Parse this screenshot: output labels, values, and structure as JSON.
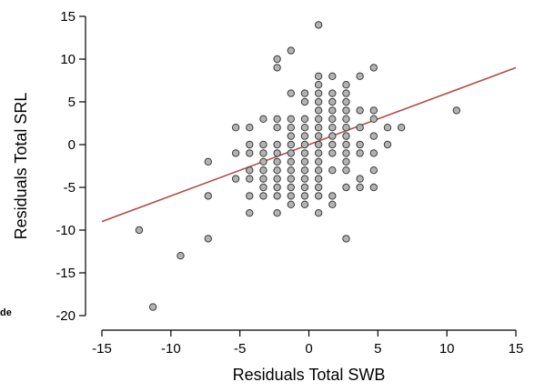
{
  "edge_fragment": "de",
  "chart_data": {
    "type": "scatter",
    "xlabel": "Residuals Total SWB",
    "ylabel": "Residuals Total SRL",
    "xlim": [
      -15,
      15
    ],
    "ylim": [
      -20,
      15
    ],
    "xticks": [
      -15,
      -10,
      -5,
      0,
      5,
      10,
      15
    ],
    "yticks": [
      -20,
      -15,
      -10,
      -5,
      0,
      5,
      10,
      15
    ],
    "grid": false,
    "point_color": "#b3b3b3",
    "point_edge_color": "#3a3a3a",
    "fit_line": {
      "color": "#b44a4a",
      "x": [
        -15,
        15
      ],
      "y": [
        -9,
        9
      ]
    },
    "points": [
      {
        "x": -12.3,
        "y": -10
      },
      {
        "x": -11.3,
        "y": -19
      },
      {
        "x": -9.3,
        "y": -13
      },
      {
        "x": -7.3,
        "y": -2
      },
      {
        "x": -7.3,
        "y": -6
      },
      {
        "x": -7.3,
        "y": -11
      },
      {
        "x": -5.3,
        "y": 2
      },
      {
        "x": -5.3,
        "y": -1
      },
      {
        "x": -5.3,
        "y": -4
      },
      {
        "x": -4.3,
        "y": 2
      },
      {
        "x": -4.3,
        "y": 0
      },
      {
        "x": -4.3,
        "y": -1
      },
      {
        "x": -4.3,
        "y": -3
      },
      {
        "x": -4.3,
        "y": -4
      },
      {
        "x": -4.3,
        "y": -6
      },
      {
        "x": -4.3,
        "y": -8
      },
      {
        "x": -3.3,
        "y": 3
      },
      {
        "x": -3.3,
        "y": 0
      },
      {
        "x": -3.3,
        "y": -1
      },
      {
        "x": -3.3,
        "y": -2
      },
      {
        "x": -3.3,
        "y": -3
      },
      {
        "x": -3.3,
        "y": -4
      },
      {
        "x": -3.3,
        "y": -5
      },
      {
        "x": -3.3,
        "y": -6
      },
      {
        "x": -2.3,
        "y": 10
      },
      {
        "x": -2.3,
        "y": 9
      },
      {
        "x": -2.3,
        "y": 3
      },
      {
        "x": -2.3,
        "y": 2
      },
      {
        "x": -2.3,
        "y": 0
      },
      {
        "x": -2.3,
        "y": -1
      },
      {
        "x": -2.3,
        "y": -2
      },
      {
        "x": -2.3,
        "y": -3
      },
      {
        "x": -2.3,
        "y": -4
      },
      {
        "x": -2.3,
        "y": -5
      },
      {
        "x": -2.3,
        "y": -6
      },
      {
        "x": -2.3,
        "y": -8
      },
      {
        "x": -1.3,
        "y": 11
      },
      {
        "x": -1.3,
        "y": 6
      },
      {
        "x": -1.3,
        "y": 3
      },
      {
        "x": -1.3,
        "y": 2
      },
      {
        "x": -1.3,
        "y": 1
      },
      {
        "x": -1.3,
        "y": 0
      },
      {
        "x": -1.3,
        "y": -1
      },
      {
        "x": -1.3,
        "y": -2
      },
      {
        "x": -1.3,
        "y": -3
      },
      {
        "x": -1.3,
        "y": -4
      },
      {
        "x": -1.3,
        "y": -5
      },
      {
        "x": -1.3,
        "y": -6
      },
      {
        "x": -1.3,
        "y": -7
      },
      {
        "x": -0.3,
        "y": 6
      },
      {
        "x": -0.3,
        "y": 5
      },
      {
        "x": -0.3,
        "y": 3
      },
      {
        "x": -0.3,
        "y": 2
      },
      {
        "x": -0.3,
        "y": 1
      },
      {
        "x": -0.3,
        "y": 0
      },
      {
        "x": -0.3,
        "y": -1
      },
      {
        "x": -0.3,
        "y": -2
      },
      {
        "x": -0.3,
        "y": -3
      },
      {
        "x": -0.3,
        "y": -4
      },
      {
        "x": -0.3,
        "y": -5
      },
      {
        "x": -0.3,
        "y": -6
      },
      {
        "x": -0.3,
        "y": -7
      },
      {
        "x": 0.7,
        "y": 14
      },
      {
        "x": 0.7,
        "y": 8
      },
      {
        "x": 0.7,
        "y": 7
      },
      {
        "x": 0.7,
        "y": 6
      },
      {
        "x": 0.7,
        "y": 5
      },
      {
        "x": 0.7,
        "y": 4
      },
      {
        "x": 0.7,
        "y": 3
      },
      {
        "x": 0.7,
        "y": 2
      },
      {
        "x": 0.7,
        "y": 1
      },
      {
        "x": 0.7,
        "y": 0
      },
      {
        "x": 0.7,
        "y": -1
      },
      {
        "x": 0.7,
        "y": -2
      },
      {
        "x": 0.7,
        "y": -3
      },
      {
        "x": 0.7,
        "y": -4
      },
      {
        "x": 0.7,
        "y": -5
      },
      {
        "x": 0.7,
        "y": -6
      },
      {
        "x": 0.7,
        "y": -8
      },
      {
        "x": 1.7,
        "y": 8
      },
      {
        "x": 1.7,
        "y": 6
      },
      {
        "x": 1.7,
        "y": 5
      },
      {
        "x": 1.7,
        "y": 4
      },
      {
        "x": 1.7,
        "y": 3
      },
      {
        "x": 1.7,
        "y": 2
      },
      {
        "x": 1.7,
        "y": 1
      },
      {
        "x": 1.7,
        "y": 0
      },
      {
        "x": 1.7,
        "y": -1
      },
      {
        "x": 1.7,
        "y": -3
      },
      {
        "x": 1.7,
        "y": -6
      },
      {
        "x": 1.7,
        "y": -7
      },
      {
        "x": 2.7,
        "y": 7
      },
      {
        "x": 2.7,
        "y": 6
      },
      {
        "x": 2.7,
        "y": 5
      },
      {
        "x": 2.7,
        "y": 4
      },
      {
        "x": 2.7,
        "y": 3
      },
      {
        "x": 2.7,
        "y": 2
      },
      {
        "x": 2.7,
        "y": 1
      },
      {
        "x": 2.7,
        "y": 0
      },
      {
        "x": 2.7,
        "y": -1
      },
      {
        "x": 2.7,
        "y": -2
      },
      {
        "x": 2.7,
        "y": -3
      },
      {
        "x": 2.7,
        "y": -5
      },
      {
        "x": 2.7,
        "y": -11
      },
      {
        "x": 3.7,
        "y": 8
      },
      {
        "x": 3.7,
        "y": 4
      },
      {
        "x": 3.7,
        "y": 2
      },
      {
        "x": 3.7,
        "y": 0
      },
      {
        "x": 3.7,
        "y": -1
      },
      {
        "x": 3.7,
        "y": -4
      },
      {
        "x": 3.7,
        "y": -5
      },
      {
        "x": 4.7,
        "y": 9
      },
      {
        "x": 4.7,
        "y": 4
      },
      {
        "x": 4.7,
        "y": 3
      },
      {
        "x": 4.7,
        "y": 1
      },
      {
        "x": 4.7,
        "y": -1
      },
      {
        "x": 4.7,
        "y": -3
      },
      {
        "x": 4.7,
        "y": -5
      },
      {
        "x": 5.7,
        "y": 2
      },
      {
        "x": 5.7,
        "y": 0
      },
      {
        "x": 6.7,
        "y": 2
      },
      {
        "x": 10.7,
        "y": 4
      }
    ]
  }
}
